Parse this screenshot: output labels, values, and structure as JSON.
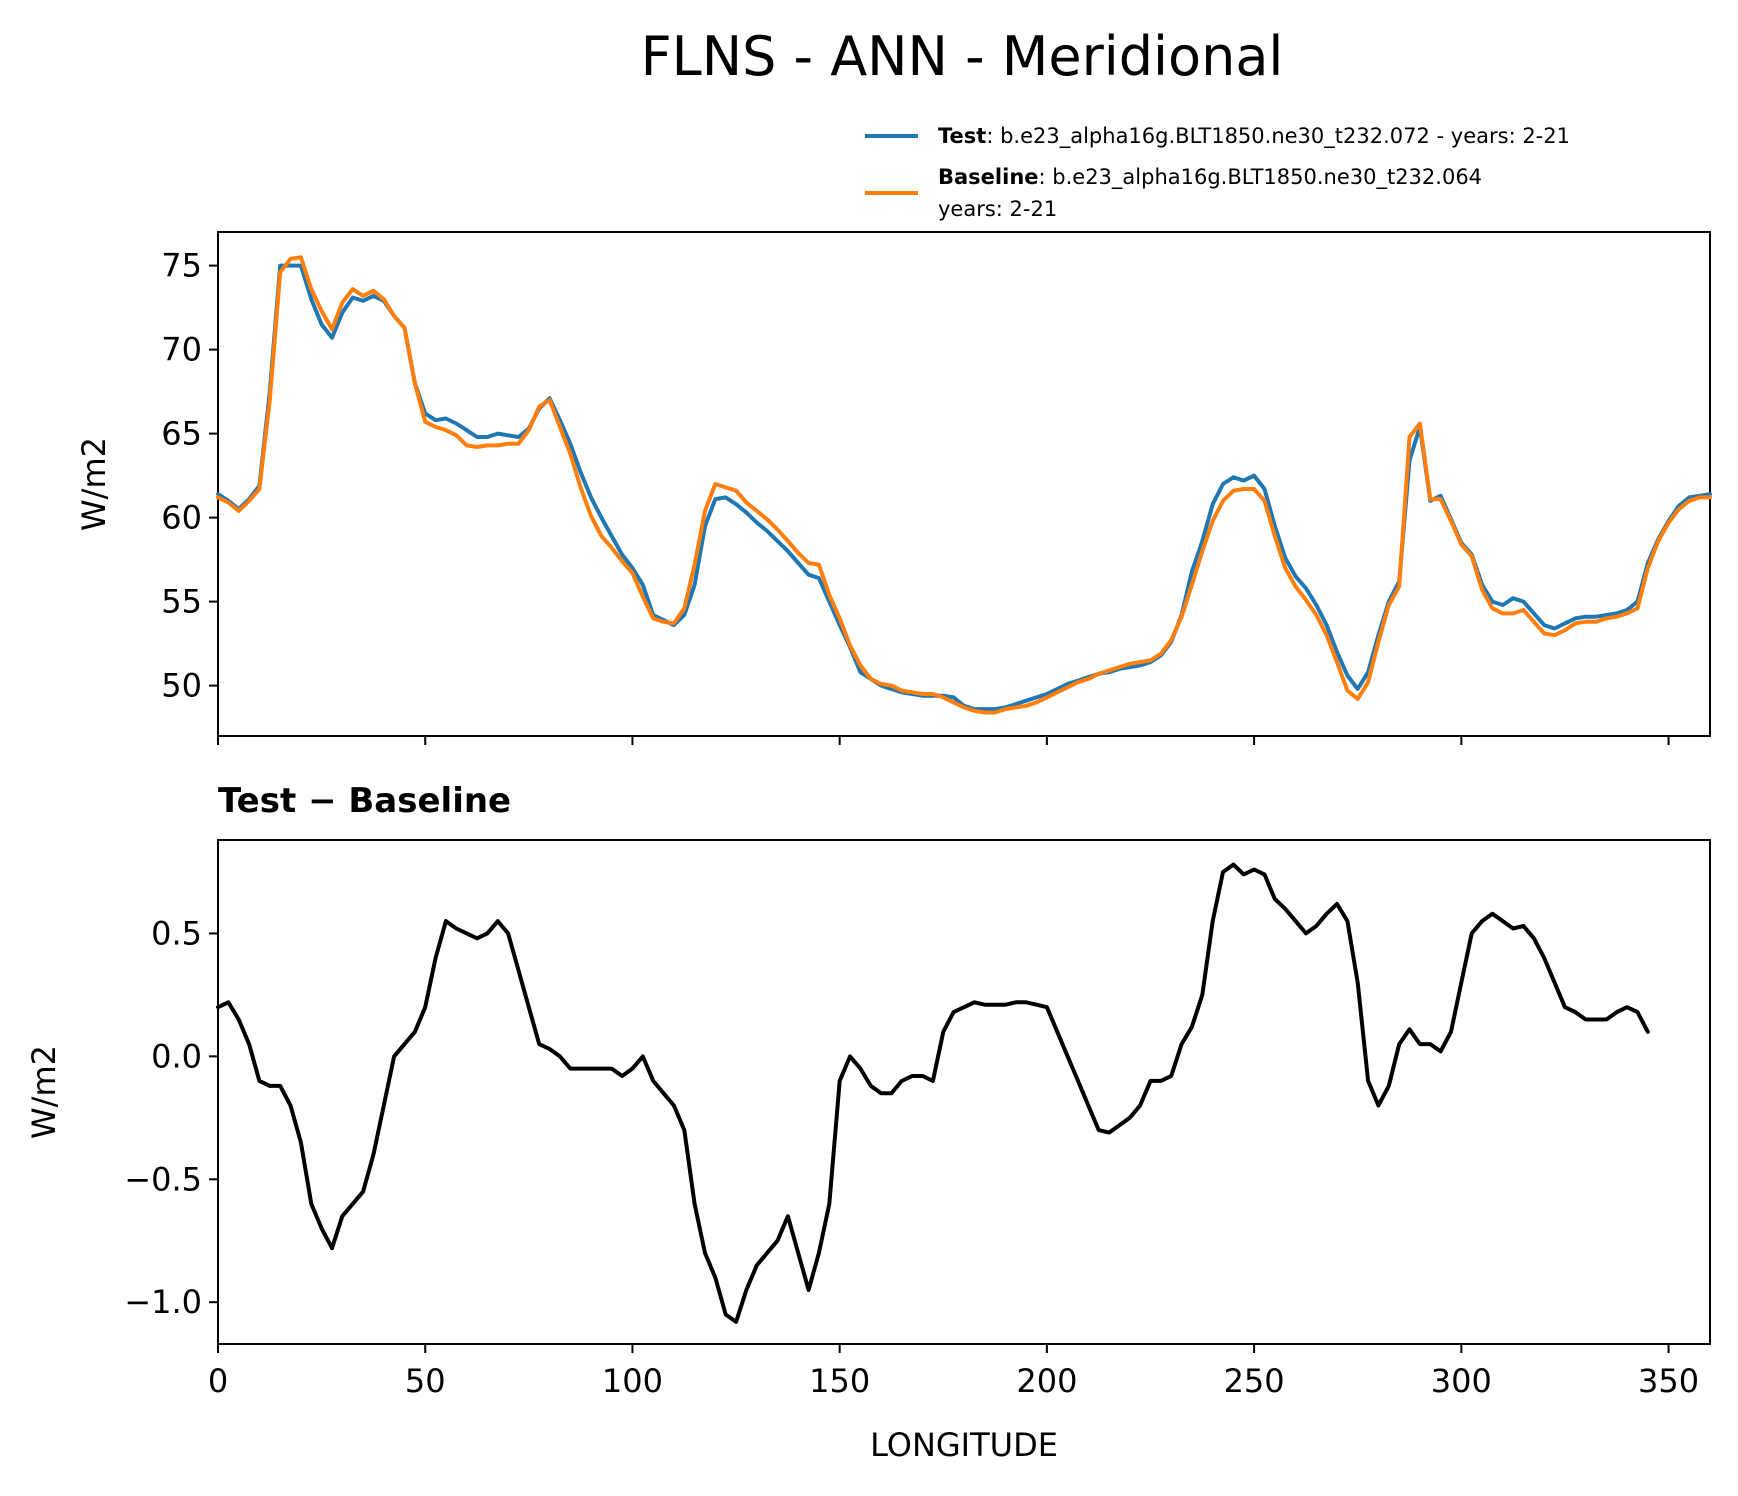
{
  "chart_data": {
    "type": "line",
    "title": "FLNS - ANN - Meridional",
    "x": [
      0,
      2.5,
      5,
      7.5,
      10,
      12.5,
      15,
      17.5,
      20,
      22.5,
      25,
      27.5,
      30,
      32.5,
      35,
      37.5,
      40,
      42.5,
      45,
      47.5,
      50,
      52.5,
      55,
      57.5,
      60,
      62.5,
      65,
      67.5,
      70,
      72.5,
      75,
      77.5,
      80,
      82.5,
      85,
      87.5,
      90,
      92.5,
      95,
      97.5,
      100,
      102.5,
      105,
      107.5,
      110,
      112.5,
      115,
      117.5,
      120,
      122.5,
      125,
      127.5,
      130,
      132.5,
      135,
      137.5,
      140,
      142.5,
      145,
      147.5,
      150,
      152.5,
      155,
      157.5,
      160,
      162.5,
      165,
      167.5,
      170,
      172.5,
      175,
      177.5,
      180,
      182.5,
      185,
      187.5,
      190,
      192.5,
      195,
      197.5,
      200,
      202.5,
      205,
      207.5,
      210,
      212.5,
      215,
      217.5,
      220,
      222.5,
      225,
      227.5,
      230,
      232.5,
      235,
      237.5,
      240,
      242.5,
      245,
      247.5,
      250,
      252.5,
      255,
      257.5,
      260,
      262.5,
      265,
      267.5,
      270,
      272.5,
      275,
      277.5,
      280,
      282.5,
      285,
      287.5,
      290,
      292.5,
      295,
      297.5,
      300,
      302.5,
      305,
      307.5,
      310,
      312.5,
      315,
      317.5,
      320,
      322.5,
      325,
      327.5,
      330,
      332.5,
      335,
      337.5,
      340,
      342.5,
      345,
      347.5,
      350,
      352.5,
      355,
      357.5,
      360
    ],
    "panels": [
      {
        "legend": [
          {
            "label": "Test",
            "text": ": b.e23_alpha16g.BLT1850.ne30_t232.072 - years: 2-21",
            "text2": ""
          },
          {
            "label": "Baseline",
            "text": ": b.e23_alpha16g.BLT1850.ne30_t232.064",
            "text2": "years: 2-21"
          }
        ],
        "ylabel": "W/m2",
        "xlim": [
          0,
          360
        ],
        "ylim": [
          47,
          77
        ],
        "yticks": [
          50,
          55,
          60,
          65,
          70,
          75
        ],
        "series": [
          {
            "name": "Test",
            "color": "#1f77b4",
            "values": [
              61.4,
              61.0,
              60.5,
              61.1,
              61.9,
              67.5,
              75.0,
              75.0,
              75.0,
              73.0,
              71.5,
              70.7,
              72.2,
              73.1,
              72.9,
              73.2,
              72.9,
              72.0,
              71.3,
              68.0,
              66.2,
              65.8,
              65.9,
              65.6,
              65.2,
              64.8,
              64.8,
              65.0,
              64.9,
              64.8,
              65.3,
              66.5,
              67.1,
              65.8,
              64.4,
              62.7,
              61.2,
              60.0,
              58.9,
              57.8,
              57.0,
              56.0,
              54.2,
              53.9,
              53.6,
              54.2,
              56.0,
              59.5,
              61.1,
              61.2,
              60.8,
              60.3,
              59.7,
              59.2,
              58.6,
              58.0,
              57.3,
              56.6,
              56.4,
              55.0,
              53.6,
              52.3,
              50.8,
              50.4,
              50.0,
              49.8,
              49.6,
              49.5,
              49.4,
              49.4,
              49.4,
              49.3,
              48.8,
              48.6,
              48.6,
              48.6,
              48.7,
              48.9,
              49.1,
              49.3,
              49.5,
              49.8,
              50.1,
              50.3,
              50.5,
              50.7,
              50.8,
              51.0,
              51.1,
              51.2,
              51.4,
              51.8,
              52.6,
              54.2,
              56.8,
              58.6,
              60.8,
              62.0,
              62.4,
              62.2,
              62.5,
              61.7,
              59.5,
              57.6,
              56.5,
              55.8,
              54.8,
              53.6,
              52.0,
              50.6,
              49.8,
              50.8,
              53.0,
              55.0,
              56.2,
              63.4,
              65.4,
              61.0,
              61.3,
              59.9,
              58.5,
              57.8,
              56.0,
              55.0,
              54.8,
              55.2,
              55.0,
              54.3,
              53.6,
              53.4,
              53.7,
              54.0,
              54.1,
              54.1,
              54.2,
              54.3,
              54.5,
              55.0,
              57.3,
              58.7,
              59.8,
              60.7,
              61.2,
              61.3,
              61.4
            ]
          },
          {
            "name": "Baseline",
            "color": "#ff7f0e",
            "values": [
              61.2,
              60.9,
              60.4,
              61.0,
              61.7,
              67.0,
              74.6,
              75.4,
              75.5,
              73.6,
              72.3,
              71.2,
              72.8,
              73.6,
              73.2,
              73.5,
              73.0,
              72.0,
              71.3,
              68.0,
              65.7,
              65.4,
              65.2,
              64.9,
              64.3,
              64.2,
              64.3,
              64.3,
              64.4,
              64.4,
              65.2,
              66.6,
              67.0,
              65.4,
              63.8,
              61.8,
              60.1,
              58.9,
              58.2,
              57.4,
              56.7,
              55.3,
              54.0,
              53.8,
              53.7,
              54.6,
              57.2,
              60.4,
              62.0,
              61.8,
              61.6,
              60.9,
              60.4,
              59.9,
              59.3,
              58.6,
              57.9,
              57.3,
              57.2,
              55.4,
              54.0,
              52.4,
              51.2,
              50.4,
              50.1,
              50.0,
              49.7,
              49.6,
              49.5,
              49.5,
              49.3,
              49.0,
              48.7,
              48.5,
              48.4,
              48.4,
              48.6,
              48.7,
              48.8,
              49.0,
              49.3,
              49.6,
              49.9,
              50.2,
              50.4,
              50.7,
              50.9,
              51.1,
              51.3,
              51.4,
              51.5,
              51.9,
              52.7,
              54.1,
              56.0,
              58.0,
              59.8,
              61.0,
              61.6,
              61.7,
              61.7,
              61.0,
              58.9,
              57.0,
              55.9,
              55.1,
              54.2,
              53.0,
              51.4,
              49.7,
              49.2,
              50.2,
              52.6,
              54.8,
              55.9,
              64.8,
              65.6,
              61.1,
              61.1,
              59.8,
              58.4,
              57.7,
              55.7,
              54.6,
              54.3,
              54.3,
              54.5,
              53.8,
              53.1,
              53.0,
              53.3,
              53.7,
              53.8,
              53.8,
              54.0,
              54.1,
              54.3,
              54.6,
              57.0,
              58.6,
              59.7,
              60.5,
              61.0,
              61.2,
              61.2
            ]
          }
        ]
      },
      {
        "title": "Test − Baseline",
        "ylabel": "W/m2",
        "xlabel": "LONGITUDE",
        "xlim": [
          0,
          360
        ],
        "ylim": [
          -1.17,
          0.88
        ],
        "yticks": [
          0.5,
          0.0,
          -0.5,
          -1.0
        ],
        "ytick_labels": [
          "0.5",
          "0.0",
          "−0.5",
          "−1.0"
        ],
        "xticks": [
          0,
          50,
          100,
          150,
          200,
          250,
          300,
          350
        ],
        "series": [
          {
            "name": "Test − Baseline",
            "color": "#000000",
            "values": [
              0.2,
              0.22,
              0.15,
              0.05,
              -0.1,
              -0.12,
              -0.12,
              -0.2,
              -0.35,
              -0.6,
              -0.7,
              -0.78,
              -0.65,
              -0.6,
              -0.55,
              -0.4,
              -0.2,
              0.0,
              0.05,
              0.1,
              0.2,
              0.4,
              0.55,
              0.52,
              0.5,
              0.48,
              0.5,
              0.55,
              0.5,
              0.35,
              0.2,
              0.05,
              0.03,
              0.0,
              -0.05,
              -0.05,
              -0.05,
              -0.05,
              -0.05,
              -0.08,
              -0.05,
              -0.0,
              -0.1,
              -0.15,
              -0.2,
              -0.3,
              -0.6,
              -0.8,
              -0.9,
              -1.05,
              -1.08,
              -0.95,
              -0.85,
              -0.8,
              -0.75,
              -0.65,
              -0.8,
              -0.95,
              -0.8,
              -0.6,
              -0.1,
              -0.0,
              -0.05,
              -0.12,
              -0.15,
              -0.15,
              -0.1,
              -0.08,
              -0.08,
              -0.1,
              0.1,
              0.18,
              0.2,
              0.22,
              0.21,
              0.21,
              0.21,
              0.22,
              0.22,
              0.21,
              0.2,
              0.1,
              0.0,
              -0.1,
              -0.2,
              -0.3,
              -0.31,
              -0.28,
              -0.25,
              -0.2,
              -0.1,
              -0.1,
              -0.08,
              0.05,
              0.12,
              0.25,
              0.55,
              0.75,
              0.78,
              0.74,
              0.76,
              0.74,
              0.64,
              0.6,
              0.55,
              0.5,
              0.53,
              0.58,
              0.62,
              0.55,
              0.3,
              -0.1,
              -0.2,
              -0.12,
              0.05,
              0.11,
              0.05,
              0.05,
              0.02,
              0.1,
              0.3,
              0.5,
              0.55,
              0.58,
              0.55,
              0.52,
              0.53,
              0.48,
              0.4,
              0.3,
              0.2,
              0.18,
              0.15,
              0.15,
              0.15,
              0.18,
              0.2,
              0.18,
              0.1
            ]
          }
        ]
      }
    ]
  }
}
